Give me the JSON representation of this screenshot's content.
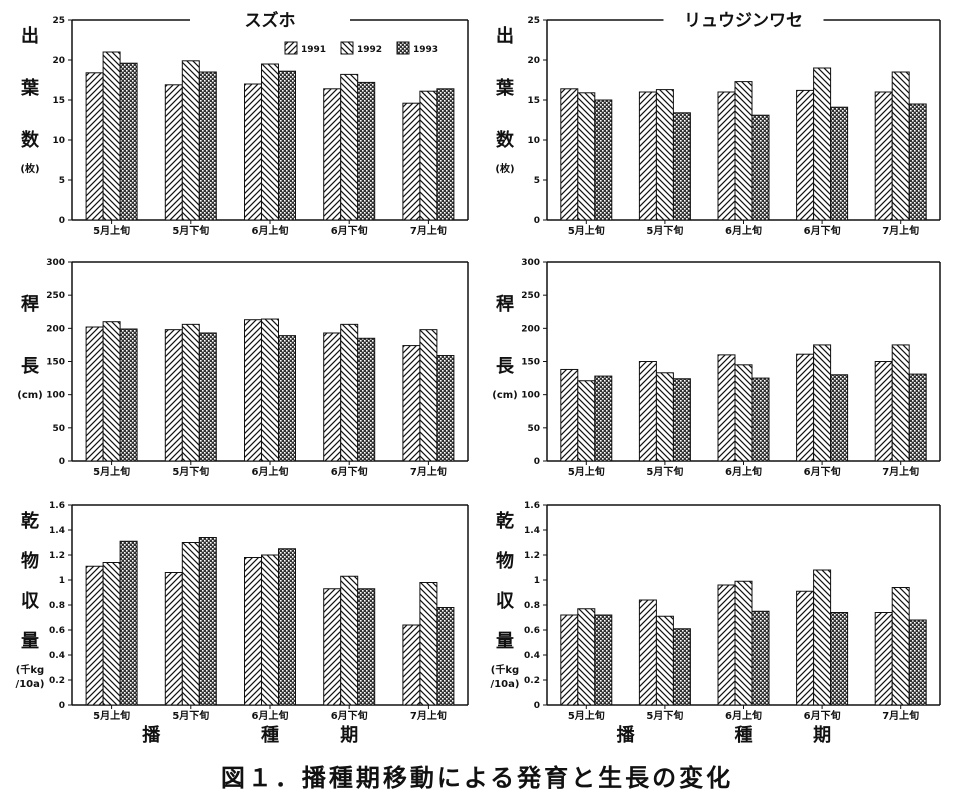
{
  "figure": {
    "caption": "図１．播種期移動による発育と生長の変化",
    "varieties": [
      "スズホ",
      "リュウジンワセ"
    ],
    "xlabel_chars": [
      "播",
      "種",
      "期"
    ],
    "legend": [
      "1991",
      "1992",
      "1993"
    ]
  },
  "chart_data": [
    {
      "type": "bar",
      "variety": "スズホ",
      "ylabel": [
        "出",
        "葉",
        "数",
        "(枚)"
      ],
      "categories": [
        "5月上旬",
        "5月下旬",
        "6月上旬",
        "6月下旬",
        "7月上旬"
      ],
      "ylim": [
        0,
        25
      ],
      "yticks": [
        0,
        5,
        10,
        15,
        20,
        25
      ],
      "series": [
        {
          "name": "1991",
          "values": [
            18.4,
            16.9,
            17.0,
            16.4,
            14.6
          ]
        },
        {
          "name": "1992",
          "values": [
            21.0,
            19.9,
            19.5,
            18.2,
            16.1
          ]
        },
        {
          "name": "1993",
          "values": [
            19.6,
            18.5,
            18.6,
            17.2,
            16.4
          ]
        }
      ]
    },
    {
      "type": "bar",
      "variety": "リュウジンワセ",
      "ylabel": [
        "出",
        "葉",
        "数",
        "(枚)"
      ],
      "categories": [
        "5月上旬",
        "5月下旬",
        "6月上旬",
        "6月下旬",
        "7月上旬"
      ],
      "ylim": [
        0,
        25
      ],
      "yticks": [
        0,
        5,
        10,
        15,
        20,
        25
      ],
      "series": [
        {
          "name": "1991",
          "values": [
            16.4,
            16.0,
            16.0,
            16.2,
            16.0
          ]
        },
        {
          "name": "1992",
          "values": [
            15.9,
            16.3,
            17.3,
            19.0,
            18.5
          ]
        },
        {
          "name": "1993",
          "values": [
            15.0,
            13.4,
            13.1,
            14.1,
            14.5
          ]
        }
      ]
    },
    {
      "type": "bar",
      "variety": "スズホ",
      "ylabel": [
        "稈",
        "長",
        "(cm)"
      ],
      "categories": [
        "5月上旬",
        "5月下旬",
        "6月上旬",
        "6月下旬",
        "7月上旬"
      ],
      "ylim": [
        0,
        300
      ],
      "yticks": [
        0,
        50,
        100,
        150,
        200,
        250,
        300
      ],
      "series": [
        {
          "name": "1991",
          "values": [
            202,
            198,
            213,
            193,
            174
          ]
        },
        {
          "name": "1992",
          "values": [
            210,
            206,
            214,
            206,
            198
          ]
        },
        {
          "name": "1993",
          "values": [
            199,
            193,
            189,
            185,
            159
          ]
        }
      ]
    },
    {
      "type": "bar",
      "variety": "リュウジンワセ",
      "ylabel": [
        "稈",
        "長",
        "(cm)"
      ],
      "categories": [
        "5月上旬",
        "5月下旬",
        "6月上旬",
        "6月下旬",
        "7月上旬"
      ],
      "ylim": [
        0,
        300
      ],
      "yticks": [
        0,
        50,
        100,
        150,
        200,
        250,
        300
      ],
      "series": [
        {
          "name": "1991",
          "values": [
            138,
            150,
            160,
            161,
            150
          ]
        },
        {
          "name": "1992",
          "values": [
            121,
            133,
            145,
            175,
            175
          ]
        },
        {
          "name": "1993",
          "values": [
            128,
            124,
            125,
            130,
            131
          ]
        }
      ]
    },
    {
      "type": "bar",
      "variety": "スズホ",
      "ylabel": [
        "乾",
        "物",
        "収",
        "量",
        "(千kg",
        "/10a)"
      ],
      "categories": [
        "5月上旬",
        "5月下旬",
        "6月上旬",
        "6月下旬",
        "7月上旬"
      ],
      "ylim": [
        0,
        1.6
      ],
      "yticks": [
        0,
        0.2,
        0.4,
        0.6,
        0.8,
        1,
        1.2,
        1.4,
        1.6
      ],
      "series": [
        {
          "name": "1991",
          "values": [
            1.11,
            1.06,
            1.18,
            0.93,
            0.64
          ]
        },
        {
          "name": "1992",
          "values": [
            1.14,
            1.3,
            1.2,
            1.03,
            0.98
          ]
        },
        {
          "name": "1993",
          "values": [
            1.31,
            1.34,
            1.25,
            0.93,
            0.78
          ]
        }
      ]
    },
    {
      "type": "bar",
      "variety": "リュウジンワセ",
      "ylabel": [
        "乾",
        "物",
        "収",
        "量",
        "(千kg",
        "/10a)"
      ],
      "categories": [
        "5月上旬",
        "5月下旬",
        "6月上旬",
        "6月下旬",
        "7月上旬"
      ],
      "ylim": [
        0,
        1.6
      ],
      "yticks": [
        0,
        0.2,
        0.4,
        0.6,
        0.8,
        1,
        1.2,
        1.4,
        1.6
      ],
      "series": [
        {
          "name": "1991",
          "values": [
            0.72,
            0.84,
            0.96,
            0.91,
            0.74
          ]
        },
        {
          "name": "1992",
          "values": [
            0.77,
            0.71,
            0.99,
            1.08,
            0.94
          ]
        },
        {
          "name": "1993",
          "values": [
            0.72,
            0.61,
            0.75,
            0.74,
            0.68
          ]
        }
      ]
    }
  ]
}
